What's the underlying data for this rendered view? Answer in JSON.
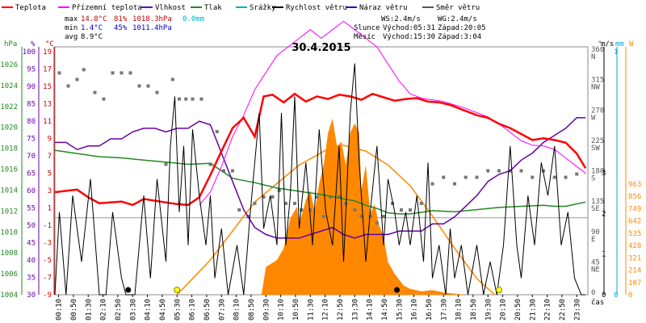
{
  "chart_data": {
    "type": "line",
    "title": "30.4.2015",
    "legend": [
      {
        "name": "Teplota",
        "color": "#ff0000"
      },
      {
        "name": "Přízemní teplota",
        "color": "#ff00ff"
      },
      {
        "name": "Vlhkost",
        "color": "#6600aa"
      },
      {
        "name": "Tlak",
        "color": "#228822"
      },
      {
        "name": "Srážky",
        "color": "#00aacc"
      },
      {
        "name": "Rychlost větru",
        "color": "#000000"
      },
      {
        "name": "Náraz větru",
        "color": "#3300aa"
      },
      {
        "name": "Směr větru",
        "color": "#555555"
      }
    ],
    "stats": {
      "max_label": "max",
      "max_temp": "14.8°C",
      "max_hum": "81%",
      "max_press": "1018.3hPa",
      "max_rain": "0.0mm",
      "min_label": "min",
      "min_temp": "1.4°C",
      "min_hum": "45%",
      "min_press": "1011.4hPa",
      "avg_label": "avg",
      "avg_temp": "8.9°C"
    },
    "wind_info": {
      "ws": "WS:2.4m/s",
      "wg": "WG:2.4m/s"
    },
    "sun_info": {
      "label": "Slunce",
      "rise": "Východ:05:31",
      "set": "Západ:20:05"
    },
    "moon_info": {
      "label": "Měsíc",
      "rise": "Východ:15:30",
      "set": "Západ:3:04"
    },
    "axis_units": {
      "hpa": "hPa",
      "pct": "%",
      "temp": "°C",
      "dir": "°",
      "ms": "m/s",
      "mm": "mm",
      "w": "W",
      "time": "čas"
    },
    "hpa_ticks": [
      "1026",
      "1024",
      "1022",
      "1020",
      "1018",
      "1016",
      "1014",
      "1012",
      "1010",
      "1008",
      "1006",
      "1004"
    ],
    "pct_ticks": [
      "100",
      "95",
      "90",
      "85",
      "80",
      "75",
      "70",
      "65",
      "60",
      "55",
      "50",
      "45",
      "40",
      "35",
      "30"
    ],
    "temp_ticks": [
      "19",
      "17",
      "15",
      "13",
      "11",
      "9",
      "7",
      "5",
      "3",
      "1",
      "-1",
      "-3",
      "-5",
      "-7",
      "-9"
    ],
    "dir_ticks": [
      {
        "deg": "360",
        "dir": "N"
      },
      {
        "deg": "315",
        "dir": "NW"
      },
      {
        "deg": "270",
        "dir": "W"
      },
      {
        "deg": "225",
        "dir": "SW"
      },
      {
        "deg": "180",
        "dir": "S"
      },
      {
        "deg": "135",
        "dir": "SE"
      },
      {
        "deg": "90",
        "dir": "E"
      },
      {
        "deg": "45",
        "dir": "NE"
      },
      {
        "deg": "0",
        "dir": ""
      }
    ],
    "ms_ticks": [
      "3",
      "2",
      "1",
      "0"
    ],
    "mm_ticks": [
      "1",
      "0"
    ],
    "w_ticks": [
      "963",
      "856",
      "749",
      "642",
      "535",
      "428",
      "321",
      "214",
      "107",
      "0"
    ],
    "time_ticks": [
      "00:10",
      "00:50",
      "01:30",
      "02:10",
      "02:50",
      "03:30",
      "04:10",
      "04:50",
      "05:30",
      "06:10",
      "06:50",
      "07:30",
      "08:10",
      "08:50",
      "09:30",
      "10:10",
      "10:50",
      "11:30",
      "12:10",
      "12:50",
      "13:30",
      "14:10",
      "14:50",
      "15:30",
      "16:10",
      "16:50",
      "17:30",
      "18:10",
      "18:50",
      "19:30",
      "20:10",
      "20:50",
      "21:30",
      "22:10",
      "22:50",
      "23:30"
    ],
    "x_range_hours": [
      0,
      24
    ],
    "temp_range": [
      -9,
      20
    ],
    "series_temp": [
      [
        0,
        3
      ],
      [
        1,
        3.3
      ],
      [
        1.5,
        2.4
      ],
      [
        2,
        1.7
      ],
      [
        3,
        1.9
      ],
      [
        3.5,
        1.5
      ],
      [
        4,
        2.2
      ],
      [
        5,
        1.8
      ],
      [
        5.5,
        1.6
      ],
      [
        6,
        1.5
      ],
      [
        6.5,
        2.4
      ],
      [
        7,
        5
      ],
      [
        7.5,
        7.8
      ],
      [
        8,
        10.5
      ],
      [
        8.5,
        11.7
      ],
      [
        9,
        9.5
      ],
      [
        9.4,
        14.2
      ],
      [
        9.8,
        14.4
      ],
      [
        10.3,
        13.5
      ],
      [
        10.8,
        14.5
      ],
      [
        11.3,
        13.6
      ],
      [
        11.8,
        14.2
      ],
      [
        12.3,
        13.9
      ],
      [
        12.8,
        14.4
      ],
      [
        13.3,
        14.2
      ],
      [
        13.8,
        13.8
      ],
      [
        14.3,
        14.5
      ],
      [
        14.8,
        14.1
      ],
      [
        15.3,
        13.7
      ],
      [
        15.8,
        13.9
      ],
      [
        16.3,
        14.0
      ],
      [
        16.8,
        13.6
      ],
      [
        17.3,
        13.5
      ],
      [
        17.8,
        13.2
      ],
      [
        18.5,
        12.5
      ],
      [
        19,
        12
      ],
      [
        19.5,
        11.7
      ],
      [
        20,
        11
      ],
      [
        20.5,
        10.5
      ],
      [
        21,
        9.8
      ],
      [
        21.5,
        9.1
      ],
      [
        22,
        9.3
      ],
      [
        22.5,
        9.1
      ],
      [
        23,
        8.8
      ],
      [
        23.5,
        7.5
      ],
      [
        23.9,
        5.8
      ]
    ],
    "series_ground": [
      [
        6.5,
        1.5
      ],
      [
        7,
        3
      ],
      [
        7.5,
        6
      ],
      [
        8,
        9.5
      ],
      [
        8.5,
        12
      ],
      [
        9,
        15
      ],
      [
        9.5,
        17
      ],
      [
        10,
        19
      ],
      [
        10.5,
        20
      ],
      [
        11,
        21
      ],
      [
        11.5,
        22
      ],
      [
        12,
        21
      ],
      [
        12.5,
        22
      ],
      [
        13,
        23
      ],
      [
        13.5,
        22
      ],
      [
        14,
        21
      ],
      [
        14.5,
        20
      ],
      [
        15,
        18
      ],
      [
        15.5,
        16
      ],
      [
        16,
        14.5
      ],
      [
        16.5,
        14
      ],
      [
        17,
        13.8
      ],
      [
        17.5,
        13.6
      ],
      [
        18,
        13.2
      ],
      [
        18.5,
        12.8
      ],
      [
        19,
        12.3
      ],
      [
        19.5,
        11.8
      ],
      [
        20,
        11
      ],
      [
        20.5,
        10
      ],
      [
        21,
        9
      ],
      [
        21.5,
        8.5
      ],
      [
        22,
        8.4
      ],
      [
        22.5,
        8
      ],
      [
        23,
        7
      ],
      [
        23.5,
        6
      ],
      [
        23.9,
        5.2
      ]
    ],
    "hum_range": [
      30,
      100
    ],
    "series_hum": [
      [
        0,
        73
      ],
      [
        0.5,
        73
      ],
      [
        1,
        71
      ],
      [
        1.5,
        72
      ],
      [
        2,
        72
      ],
      [
        2.5,
        74
      ],
      [
        3,
        74
      ],
      [
        3.5,
        76
      ],
      [
        4,
        77
      ],
      [
        4.5,
        77
      ],
      [
        5,
        76
      ],
      [
        5.5,
        77
      ],
      [
        6,
        77
      ],
      [
        6.5,
        79
      ],
      [
        7,
        78
      ],
      [
        7.5,
        70
      ],
      [
        8,
        62
      ],
      [
        8.5,
        54
      ],
      [
        9,
        49
      ],
      [
        9.5,
        47
      ],
      [
        10,
        46
      ],
      [
        10.5,
        46
      ],
      [
        11,
        46
      ],
      [
        11.5,
        47
      ],
      [
        12,
        48
      ],
      [
        12.5,
        49
      ],
      [
        13,
        47
      ],
      [
        13.5,
        46
      ],
      [
        14,
        47
      ],
      [
        14.5,
        47
      ],
      [
        15,
        47
      ],
      [
        15.5,
        48
      ],
      [
        16,
        48
      ],
      [
        16.5,
        48
      ],
      [
        17,
        50
      ],
      [
        17.5,
        50
      ],
      [
        18,
        52
      ],
      [
        18.5,
        55
      ],
      [
        19,
        58
      ],
      [
        19.5,
        62
      ],
      [
        20,
        64
      ],
      [
        20.5,
        65
      ],
      [
        21,
        68
      ],
      [
        21.5,
        70
      ],
      [
        22,
        73
      ],
      [
        22.5,
        75
      ],
      [
        23,
        77
      ],
      [
        23.5,
        80
      ],
      [
        23.9,
        80
      ]
    ],
    "press_range": [
      1004,
      1027
    ],
    "series_press": [
      [
        0,
        1017.4
      ],
      [
        1,
        1017.1
      ],
      [
        2,
        1016.8
      ],
      [
        3,
        1016.7
      ],
      [
        4,
        1016.5
      ],
      [
        5,
        1016.3
      ],
      [
        6,
        1016.1
      ],
      [
        7,
        1016.2
      ],
      [
        7.5,
        1015.5
      ],
      [
        8,
        1014.8
      ],
      [
        9,
        1014.4
      ],
      [
        10,
        1013.9
      ],
      [
        11,
        1013.6
      ],
      [
        12,
        1013.3
      ],
      [
        13,
        1012.9
      ],
      [
        13.5,
        1012.7
      ],
      [
        14,
        1012.3
      ],
      [
        14.5,
        1012.0
      ],
      [
        15,
        1011.6
      ],
      [
        15.5,
        1011.5
      ],
      [
        16,
        1011.5
      ],
      [
        17,
        1011.8
      ],
      [
        18,
        1011.7
      ],
      [
        19,
        1011.9
      ],
      [
        20,
        1012.1
      ],
      [
        21,
        1012.2
      ],
      [
        22,
        1012.3
      ],
      [
        22.5,
        1012.2
      ],
      [
        23,
        1012.2
      ],
      [
        23.9,
        1012.6
      ]
    ],
    "solar_range": [
      0,
      1070
    ],
    "solar_curve": [
      [
        5.5,
        0
      ],
      [
        7,
        150
      ],
      [
        9,
        400
      ],
      [
        11,
        560
      ],
      [
        12.5,
        640
      ],
      [
        13,
        645
      ],
      [
        14,
        620
      ],
      [
        15,
        560
      ],
      [
        16,
        470
      ],
      [
        17,
        340
      ],
      [
        18,
        200
      ],
      [
        19,
        70
      ],
      [
        19.8,
        0
      ]
    ],
    "solar_area": [
      [
        9.3,
        0
      ],
      [
        9.5,
        120
      ],
      [
        10,
        150
      ],
      [
        10.3,
        200
      ],
      [
        10.6,
        330
      ],
      [
        10.9,
        380
      ],
      [
        11,
        300
      ],
      [
        11.3,
        410
      ],
      [
        11.5,
        450
      ],
      [
        11.7,
        360
      ],
      [
        11.9,
        480
      ],
      [
        12.1,
        560
      ],
      [
        12.3,
        700
      ],
      [
        12.5,
        760
      ],
      [
        12.7,
        640
      ],
      [
        12.9,
        660
      ],
      [
        13.1,
        560
      ],
      [
        13.3,
        700
      ],
      [
        13.5,
        740
      ],
      [
        13.7,
        700
      ],
      [
        13.8,
        450
      ],
      [
        14,
        560
      ],
      [
        14.2,
        350
      ],
      [
        14.4,
        390
      ],
      [
        14.6,
        300
      ],
      [
        14.8,
        250
      ],
      [
        15,
        140
      ],
      [
        15.3,
        90
      ],
      [
        15.7,
        40
      ],
      [
        16,
        25
      ],
      [
        16.5,
        15
      ],
      [
        17,
        20
      ],
      [
        17.5,
        10
      ],
      [
        18,
        5
      ],
      [
        18.5,
        0
      ]
    ],
    "wind_range_ms": [
      0,
      3
    ],
    "series_wind": [
      [
        0,
        0
      ],
      [
        0.2,
        0.5
      ],
      [
        0.5,
        0
      ],
      [
        0.8,
        0.6
      ],
      [
        1.2,
        0.2
      ],
      [
        1.6,
        0.7
      ],
      [
        2,
        0
      ],
      [
        2.3,
        0
      ],
      [
        2.6,
        0.5
      ],
      [
        3,
        0.1
      ],
      [
        3.2,
        0
      ],
      [
        3.6,
        0
      ],
      [
        4,
        0.6
      ],
      [
        4.3,
        0.1
      ],
      [
        4.6,
        0.7
      ],
      [
        5,
        0.2
      ],
      [
        5.2,
        0.9
      ],
      [
        5.4,
        1.2
      ],
      [
        5.6,
        0.5
      ],
      [
        5.8,
        0.9
      ],
      [
        6,
        0.3
      ],
      [
        6.2,
        1
      ],
      [
        6.5,
        0.6
      ],
      [
        6.8,
        0.3
      ],
      [
        7,
        0.6
      ],
      [
        7.2,
        0.1
      ],
      [
        7.5,
        0.4
      ],
      [
        7.8,
        0
      ],
      [
        8.2,
        0.3
      ],
      [
        8.5,
        0
      ],
      [
        8.8,
        0.5
      ],
      [
        9,
        0.8
      ],
      [
        9.2,
        1.1
      ],
      [
        9.4,
        0.4
      ],
      [
        9.7,
        0.6
      ],
      [
        10,
        0.3
      ],
      [
        10.2,
        1.1
      ],
      [
        10.4,
        0.3
      ],
      [
        10.6,
        0.6
      ],
      [
        10.8,
        1.2
      ],
      [
        11,
        0.4
      ],
      [
        11.3,
        0.8
      ],
      [
        11.6,
        0.3
      ],
      [
        11.9,
        1.0
      ],
      [
        12.2,
        0.5
      ],
      [
        12.5,
        0.3
      ],
      [
        12.8,
        0.9
      ],
      [
        13,
        0.2
      ],
      [
        13.3,
        1.1
      ],
      [
        13.5,
        1.4
      ],
      [
        13.7,
        0.8
      ],
      [
        14,
        0.2
      ],
      [
        14.2,
        0.5
      ],
      [
        14.5,
        0.9
      ],
      [
        14.8,
        0.3
      ],
      [
        15,
        0.7
      ],
      [
        15.3,
        0.5
      ],
      [
        15.5,
        0.3
      ],
      [
        15.8,
        0.5
      ],
      [
        16,
        0.3
      ],
      [
        16.3,
        0.6
      ],
      [
        16.6,
        0.2
      ],
      [
        16.8,
        0.8
      ],
      [
        17,
        0.1
      ],
      [
        17.3,
        0.3
      ],
      [
        17.6,
        0
      ],
      [
        17.8,
        0.4
      ],
      [
        18,
        0.1
      ],
      [
        18.3,
        0.3
      ],
      [
        18.6,
        0
      ],
      [
        19,
        0.3
      ],
      [
        19.3,
        0
      ],
      [
        19.6,
        0.2
      ],
      [
        19.9,
        0
      ],
      [
        20.2,
        0.3
      ],
      [
        20.5,
        0.9
      ],
      [
        20.8,
        0.3
      ],
      [
        21,
        0.1
      ],
      [
        21.3,
        0.6
      ],
      [
        21.6,
        0.3
      ],
      [
        21.9,
        0.8
      ],
      [
        22.2,
        0.6
      ],
      [
        22.5,
        0.9
      ],
      [
        22.8,
        0.3
      ],
      [
        23.1,
        0.5
      ],
      [
        23.4,
        0.1
      ],
      [
        23.7,
        0
      ],
      [
        23.9,
        0
      ]
    ],
    "wind_dir": [
      [
        0.2,
        340
      ],
      [
        0.6,
        320
      ],
      [
        1.0,
        330
      ],
      [
        1.3,
        345
      ],
      [
        1.8,
        310
      ],
      [
        2.2,
        300
      ],
      [
        2.6,
        340
      ],
      [
        3.0,
        340
      ],
      [
        3.4,
        340
      ],
      [
        3.8,
        320
      ],
      [
        4.2,
        320
      ],
      [
        4.6,
        310
      ],
      [
        5.0,
        200
      ],
      [
        5.3,
        330
      ],
      [
        5.6,
        300
      ],
      [
        5.9,
        300
      ],
      [
        6.2,
        300
      ],
      [
        6.6,
        300
      ],
      [
        7.0,
        200
      ],
      [
        7.3,
        250
      ],
      [
        7.6,
        190
      ],
      [
        8.0,
        190
      ],
      [
        8.3,
        130
      ],
      [
        8.7,
        120
      ],
      [
        9.0,
        140
      ],
      [
        9.4,
        150
      ],
      [
        9.8,
        150
      ],
      [
        10.1,
        160
      ],
      [
        10.4,
        140
      ],
      [
        10.8,
        140
      ],
      [
        11.1,
        130
      ],
      [
        11.5,
        130
      ],
      [
        11.8,
        150
      ],
      [
        12.1,
        120
      ],
      [
        12.4,
        150
      ],
      [
        12.8,
        150
      ],
      [
        13.1,
        140
      ],
      [
        13.5,
        130
      ],
      [
        13.8,
        120
      ],
      [
        14.2,
        120
      ],
      [
        14.5,
        110
      ],
      [
        14.8,
        120
      ],
      [
        15.2,
        140
      ],
      [
        15.6,
        130
      ],
      [
        16.0,
        130
      ],
      [
        16.5,
        140
      ],
      [
        17.0,
        170
      ],
      [
        17.5,
        180
      ],
      [
        18.0,
        170
      ],
      [
        18.5,
        180
      ],
      [
        19.0,
        180
      ],
      [
        19.5,
        190
      ],
      [
        20.0,
        190
      ],
      [
        20.5,
        190
      ],
      [
        21.0,
        190
      ],
      [
        21.5,
        180
      ],
      [
        22.0,
        190
      ],
      [
        22.5,
        180
      ],
      [
        23.0,
        180
      ],
      [
        23.5,
        185
      ]
    ],
    "moon_marks": [
      3.3,
      15.4
    ],
    "sun_marks": [
      5.5,
      20.0
    ]
  }
}
